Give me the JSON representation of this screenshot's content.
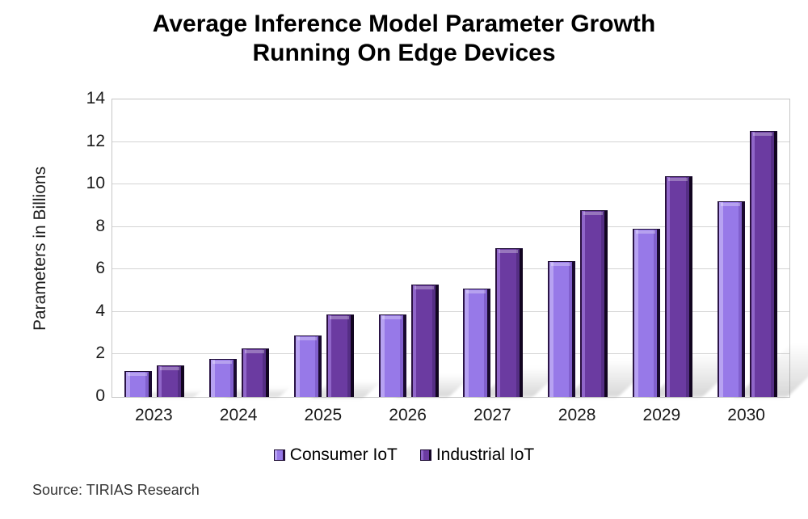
{
  "title": {
    "line1": "Average Inference Model Parameter Growth",
    "line2": "Running On Edge Devices"
  },
  "source": "Source: TIRIAS Research",
  "chart_data": {
    "type": "bar",
    "title": "Average Inference Model Parameter Growth Running On Edge Devices",
    "categories": [
      "2023",
      "2024",
      "2025",
      "2026",
      "2027",
      "2028",
      "2029",
      "2030"
    ],
    "series": [
      {
        "name": "Consumer IoT",
        "color": "#9779e8",
        "values": [
          1.2,
          1.8,
          2.9,
          3.9,
          5.1,
          6.4,
          7.9,
          9.2
        ]
      },
      {
        "name": "Industrial IoT",
        "color": "#6b3ba1",
        "values": [
          1.5,
          2.3,
          3.9,
          5.3,
          7.0,
          8.8,
          10.4,
          12.5
        ]
      }
    ],
    "xlabel": "",
    "ylabel": "Parameters in Billions",
    "ylim": [
      0,
      14
    ],
    "ytick_step": 2,
    "ytick_labels": [
      "0",
      "2",
      "4",
      "6",
      "8",
      "10",
      "12",
      "14"
    ],
    "grid": true,
    "legend_position": "bottom",
    "annotation_source": "Source: TIRIAS Research"
  }
}
